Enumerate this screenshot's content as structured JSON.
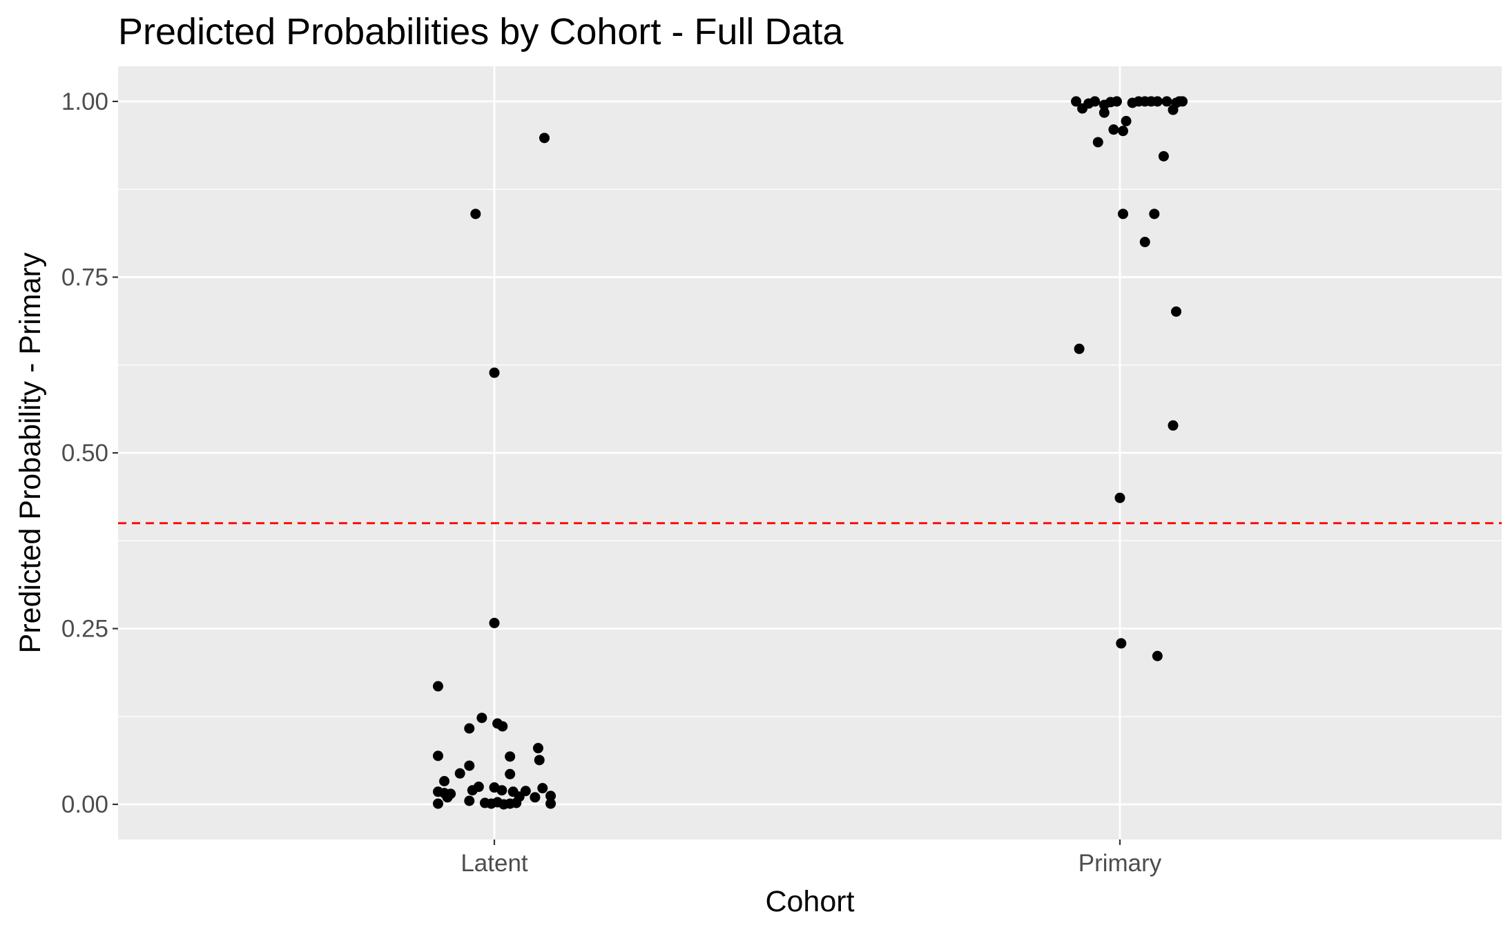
{
  "chart_data": {
    "type": "scatter",
    "title": "Predicted Probabilities by Cohort - Full Data",
    "xlabel": "Cohort",
    "ylabel": "Predicted Probability - Primary",
    "categories": [
      "Latent",
      "Primary"
    ],
    "ylim": [
      -0.05,
      1.05
    ],
    "yticks": [
      0.0,
      0.25,
      0.5,
      0.75,
      1.0
    ],
    "ytick_labels": [
      "0.00",
      "0.25",
      "0.50",
      "0.75",
      "1.00"
    ],
    "jitter": true,
    "grid": true,
    "reference_line": {
      "y": 0.4,
      "style": "dashed",
      "color": "#ff0000"
    },
    "colors": {
      "panel": "#ebebeb",
      "grid": "#ffffff",
      "point": "#000000",
      "tick_text": "#4d4d4d"
    },
    "points": [
      {
        "x": -0.09,
        "y": 0.168
      },
      {
        "x": 0.08,
        "y": 0.948
      },
      {
        "x": -0.03,
        "y": 0.84
      },
      {
        "x": 0.0,
        "y": 0.614
      },
      {
        "x": 0.0,
        "y": 0.258
      },
      {
        "x": -0.04,
        "y": 0.108
      },
      {
        "x": -0.02,
        "y": 0.123
      },
      {
        "x": 0.005,
        "y": 0.115
      },
      {
        "x": 0.013,
        "y": 0.111
      },
      {
        "x": -0.09,
        "y": 0.069
      },
      {
        "x": 0.025,
        "y": 0.068
      },
      {
        "x": 0.07,
        "y": 0.08
      },
      {
        "x": 0.072,
        "y": 0.063
      },
      {
        "x": -0.04,
        "y": 0.055
      },
      {
        "x": -0.055,
        "y": 0.044
      },
      {
        "x": 0.025,
        "y": 0.043
      },
      {
        "x": -0.08,
        "y": 0.033
      },
      {
        "x": -0.025,
        "y": 0.025
      },
      {
        "x": -0.035,
        "y": 0.02
      },
      {
        "x": 0.0,
        "y": 0.024
      },
      {
        "x": 0.012,
        "y": 0.02
      },
      {
        "x": 0.03,
        "y": 0.018
      },
      {
        "x": 0.05,
        "y": 0.019
      },
      {
        "x": 0.077,
        "y": 0.023
      },
      {
        "x": -0.09,
        "y": 0.018
      },
      {
        "x": -0.07,
        "y": 0.015
      },
      {
        "x": -0.08,
        "y": 0.016
      },
      {
        "x": -0.075,
        "y": 0.01
      },
      {
        "x": 0.04,
        "y": 0.011
      },
      {
        "x": 0.065,
        "y": 0.01
      },
      {
        "x": 0.09,
        "y": 0.012
      },
      {
        "x": -0.04,
        "y": 0.005
      },
      {
        "x": -0.09,
        "y": 0.001
      },
      {
        "x": -0.015,
        "y": 0.002
      },
      {
        "x": -0.005,
        "y": 0.001
      },
      {
        "x": 0.005,
        "y": 0.003
      },
      {
        "x": 0.015,
        "y": 0.0
      },
      {
        "x": 0.025,
        "y": 0.001
      },
      {
        "x": 0.035,
        "y": 0.002
      },
      {
        "x": 0.09,
        "y": 0.001
      },
      {
        "x": 0.93,
        "y": 1.0
      },
      {
        "x": 0.94,
        "y": 0.99
      },
      {
        "x": 0.95,
        "y": 0.997
      },
      {
        "x": 0.96,
        "y": 1.0
      },
      {
        "x": 0.935,
        "y": 0.648
      },
      {
        "x": 0.965,
        "y": 0.942
      },
      {
        "x": 0.975,
        "y": 0.984
      },
      {
        "x": 0.975,
        "y": 0.995
      },
      {
        "x": 0.985,
        "y": 0.999
      },
      {
        "x": 0.99,
        "y": 0.96
      },
      {
        "x": 0.995,
        "y": 1.0
      },
      {
        "x": 1.005,
        "y": 0.958
      },
      {
        "x": 1.01,
        "y": 0.972
      },
      {
        "x": 1.005,
        "y": 0.84
      },
      {
        "x": 1.0,
        "y": 0.436
      },
      {
        "x": 1.002,
        "y": 0.229
      },
      {
        "x": 1.02,
        "y": 0.998
      },
      {
        "x": 1.03,
        "y": 1.0
      },
      {
        "x": 1.04,
        "y": 1.0
      },
      {
        "x": 1.05,
        "y": 1.0
      },
      {
        "x": 1.055,
        "y": 0.84
      },
      {
        "x": 1.04,
        "y": 0.8
      },
      {
        "x": 1.06,
        "y": 1.0
      },
      {
        "x": 1.06,
        "y": 0.211
      },
      {
        "x": 1.07,
        "y": 0.922
      },
      {
        "x": 1.075,
        "y": 1.0
      },
      {
        "x": 1.085,
        "y": 0.988
      },
      {
        "x": 1.09,
        "y": 0.998
      },
      {
        "x": 1.095,
        "y": 1.0
      },
      {
        "x": 1.1,
        "y": 1.0
      },
      {
        "x": 1.09,
        "y": 0.701
      },
      {
        "x": 1.085,
        "y": 0.539
      }
    ]
  }
}
